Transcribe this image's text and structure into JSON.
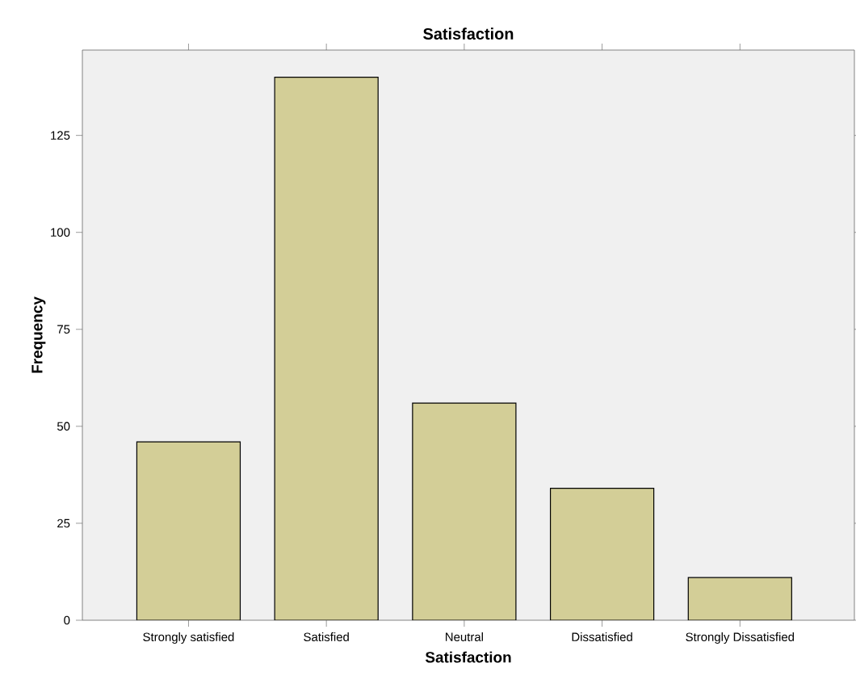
{
  "chart_data": {
    "type": "bar",
    "title": "Satisfaction",
    "xlabel": "Satisfaction",
    "ylabel": "Frequency",
    "categories": [
      "Strongly satisfied",
      "Satisfied",
      "Neutral",
      "Dissatisfied",
      "Strongly Dissatisfied"
    ],
    "values": [
      46,
      140,
      56,
      34,
      11
    ],
    "color": "#d3ce97",
    "ylim": [
      0,
      147
    ],
    "yticks": [
      0,
      25,
      50,
      75,
      100,
      125
    ],
    "grid": false
  }
}
